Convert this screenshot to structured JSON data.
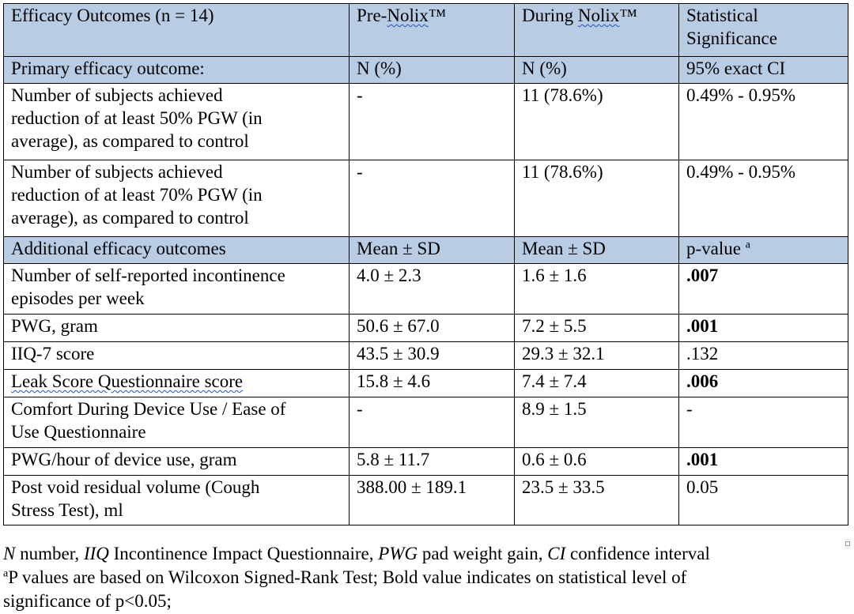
{
  "table": {
    "header": {
      "col1": "Efficacy Outcomes (n = 14)",
      "col2_prefix": "Pre-",
      "col2_brand": "Nolix",
      "col2_suffix": "™",
      "col3_prefix": "During ",
      "col3_brand": "Nolix",
      "col3_suffix": "™",
      "col4_line1": "Statistical",
      "col4_line2": "Significance"
    },
    "primary_header": {
      "label": "Primary efficacy outcome:",
      "pre": "N (%)",
      "during": "N (%)",
      "stat": "95% exact CI"
    },
    "primary_rows": [
      {
        "lines": [
          "Number of subjects achieved",
          "reduction of at least 50% PGW (in",
          "average), as compared to control"
        ],
        "pre": "-",
        "during": "11 (78.6%)",
        "stat": "0.49% - 0.95%"
      },
      {
        "lines": [
          "Number of subjects achieved",
          "reduction of at least 70% PGW (in",
          "average), as compared to control"
        ],
        "pre": "-",
        "during": "11 (78.6%)",
        "stat": "0.49% - 0.95%"
      }
    ],
    "additional_header": {
      "label": "Additional efficacy outcomes",
      "pre": "Mean ± SD",
      "during": "Mean ± SD",
      "stat": "p-value",
      "stat_sup": "a"
    },
    "additional_rows": [
      {
        "lines": [
          "Number of self-reported incontinence",
          "episodes per week"
        ],
        "pre": "4.0 ± 2.3",
        "during": "1.6 ± 1.6",
        "stat": ".007",
        "stat_bold": true
      },
      {
        "lines": [
          "PWG, gram"
        ],
        "pre": "50.6 ± 67.0",
        "during": "7.2 ± 5.5",
        "stat": ".001",
        "stat_bold": true
      },
      {
        "lines": [
          "IIQ-7 score"
        ],
        "pre": "43.5 ± 30.9",
        "during": "29.3 ± 32.1",
        "stat": ".132",
        "stat_bold": false
      },
      {
        "lines": [
          "Leak Score Questionnaire score"
        ],
        "pre": "15.8 ± 4.6",
        "during": "7.4 ± 7.4",
        "stat": ".006",
        "stat_bold": true
      },
      {
        "lines": [
          "Comfort During Device Use / Ease of",
          "Use Questionnaire"
        ],
        "pre": "-",
        "during": "8.9 ± 1.5",
        "stat": "-",
        "stat_bold": false
      },
      {
        "lines": [
          "PWG/hour of device use, gram"
        ],
        "pre": "5.8 ± 11.7",
        "during": "0.6 ± 0.6",
        "stat": ".001",
        "stat_bold": true
      },
      {
        "lines": [
          "Post void residual volume (Cough",
          "Stress Test), ml"
        ],
        "pre": "388.00 ± 189.1",
        "during": "23.5 ± 33.5",
        "stat": "0.05",
        "stat_bold": false
      }
    ]
  },
  "footnotes": {
    "abbreviations": [
      {
        "abbr": "N",
        "text": " number, "
      },
      {
        "abbr": "IIQ",
        "text": " Incontinence Impact Questionnaire, "
      },
      {
        "abbr": "PWG",
        "text": " pad weight gain, "
      },
      {
        "abbr": "CI",
        "text": "  confidence interval"
      }
    ],
    "note_marker": "a",
    "note_line1": "P values are based on Wilcoxon Signed-Rank Test; Bold value indicates on statistical level of",
    "note_line2": "significance of p<0.05;"
  },
  "colors": {
    "header_shading": "#b8cce4",
    "spellcheck_underline": "#1f4fd1"
  }
}
